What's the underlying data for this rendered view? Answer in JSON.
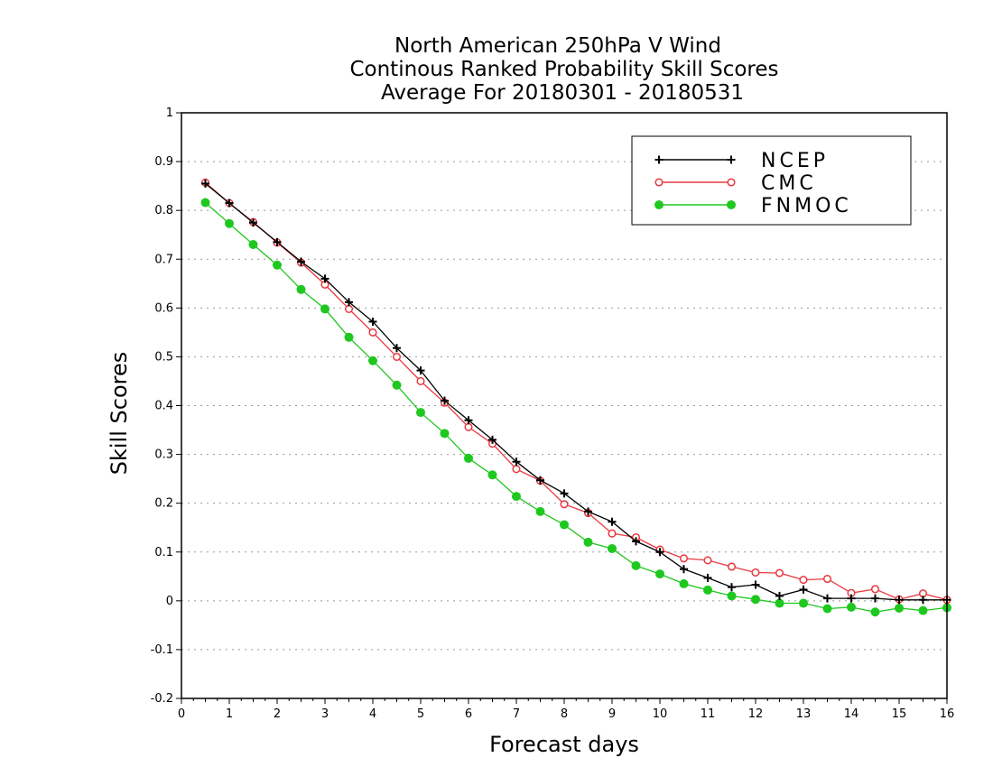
{
  "chart_data": {
    "type": "line",
    "title": [
      "North American 250hPa V Wind",
      "Continous Ranked Probability Skill Scores",
      "Average For 20180301 - 20180531"
    ],
    "xlabel": "Forecast days",
    "ylabel": "Skill Scores",
    "xlim": [
      0,
      16
    ],
    "ylim": [
      -0.2,
      1
    ],
    "xticks": [
      0,
      1,
      2,
      3,
      4,
      5,
      6,
      7,
      8,
      9,
      10,
      11,
      12,
      13,
      14,
      15,
      16
    ],
    "yticks": [
      -0.2,
      -0.1,
      0,
      0.1,
      0.2,
      0.3,
      0.4,
      0.5,
      0.6,
      0.7,
      0.8,
      0.9,
      1
    ],
    "ytick_labels": [
      "-0.2",
      "-0.1",
      "0",
      "0.1",
      "0.2",
      "0.3",
      "0.4",
      "0.5",
      "0.6",
      "0.7",
      "0.8",
      "0.9",
      "1"
    ],
    "grid": "horizontal-dotted",
    "legend_position": "top-right",
    "x": [
      0.5,
      1,
      1.5,
      2,
      2.5,
      3,
      3.5,
      4,
      4.5,
      5,
      5.5,
      6,
      6.5,
      7,
      7.5,
      8,
      8.5,
      9,
      9.5,
      10,
      10.5,
      11,
      11.5,
      12,
      12.5,
      13,
      13.5,
      14,
      14.5,
      15,
      15.5,
      16
    ],
    "series": [
      {
        "name": "NCEP",
        "color": "#000000",
        "marker": "plus",
        "values": [
          0.855,
          0.815,
          0.775,
          0.735,
          0.695,
          0.66,
          0.612,
          0.572,
          0.518,
          0.472,
          0.41,
          0.37,
          0.33,
          0.285,
          0.247,
          0.22,
          0.183,
          0.162,
          0.122,
          0.1,
          0.065,
          0.047,
          0.028,
          0.033,
          0.01,
          0.023,
          0.005,
          0.005,
          0.005,
          0.002,
          0.002,
          0.002
        ]
      },
      {
        "name": "CMC",
        "color": "#e8383f",
        "marker": "open-circle",
        "values": [
          0.857,
          0.815,
          0.776,
          0.734,
          0.693,
          0.648,
          0.598,
          0.55,
          0.5,
          0.45,
          0.406,
          0.356,
          0.322,
          0.27,
          0.246,
          0.198,
          0.18,
          0.138,
          0.13,
          0.105,
          0.087,
          0.083,
          0.07,
          0.058,
          0.057,
          0.043,
          0.045,
          0.016,
          0.024,
          0.003,
          0.015,
          0.002
        ]
      },
      {
        "name": "FNMOC",
        "color": "#1ec81e",
        "marker": "filled-circle",
        "values": [
          0.816,
          0.773,
          0.73,
          0.688,
          0.638,
          0.598,
          0.54,
          0.492,
          0.442,
          0.386,
          0.343,
          0.292,
          0.258,
          0.214,
          0.183,
          0.156,
          0.12,
          0.107,
          0.072,
          0.055,
          0.035,
          0.022,
          0.01,
          0.003,
          -0.005,
          -0.005,
          -0.016,
          -0.013,
          -0.023,
          -0.015,
          -0.02,
          -0.014
        ]
      }
    ]
  }
}
